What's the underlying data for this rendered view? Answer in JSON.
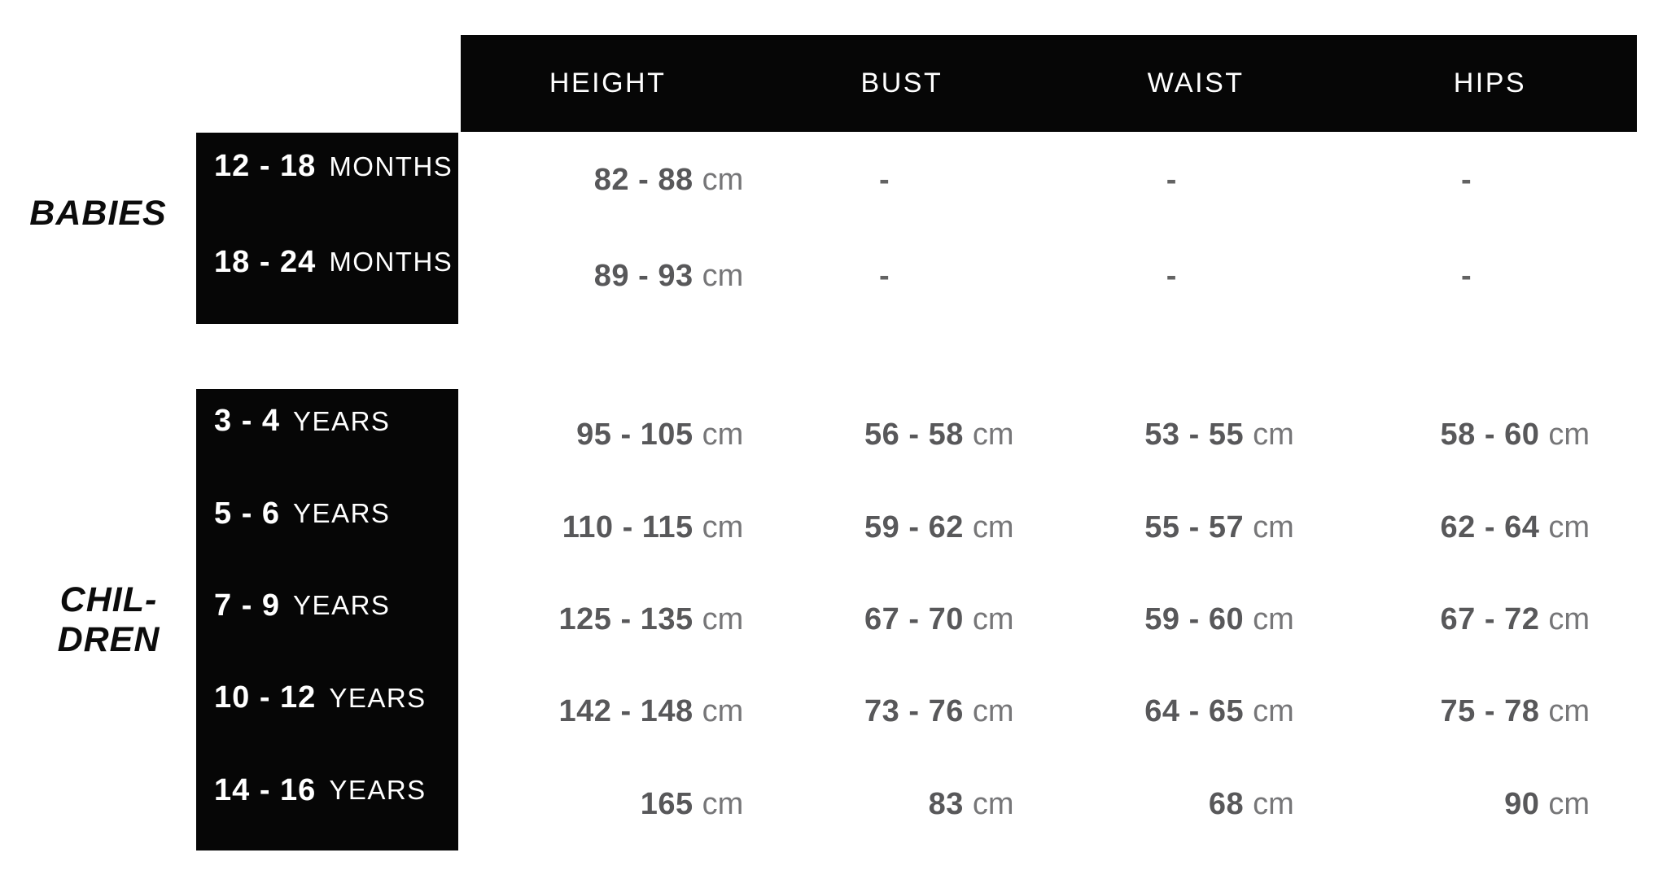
{
  "chart_data": {
    "type": "table",
    "columns": [
      "HEIGHT",
      "BUST",
      "WAIST",
      "HIPS"
    ],
    "groups": [
      {
        "label_lines": [
          "BABIES"
        ],
        "rows": [
          {
            "size": "12 - 18",
            "size_unit": "MONTHS",
            "cells": [
              {
                "num": "82 - 88",
                "unit": "cm"
              },
              {
                "dash": "-"
              },
              {
                "dash": "-"
              },
              {
                "dash": "-"
              }
            ]
          },
          {
            "size": "18 - 24",
            "size_unit": "MONTHS",
            "cells": [
              {
                "num": "89 - 93",
                "unit": "cm"
              },
              {
                "dash": "-"
              },
              {
                "dash": "-"
              },
              {
                "dash": "-"
              }
            ]
          }
        ]
      },
      {
        "label_lines": [
          "CHIL-",
          "DREN"
        ],
        "rows": [
          {
            "size": "3 - 4",
            "size_unit": "YEARS",
            "cells": [
              {
                "num": "95 - 105",
                "unit": "cm"
              },
              {
                "num": "56 - 58",
                "unit": "cm"
              },
              {
                "num": "53 - 55",
                "unit": "cm"
              },
              {
                "num": "58 - 60",
                "unit": "cm"
              }
            ]
          },
          {
            "size": "5 - 6",
            "size_unit": "YEARS",
            "cells": [
              {
                "num": "110 - 115",
                "unit": "cm"
              },
              {
                "num": "59 - 62",
                "unit": "cm"
              },
              {
                "num": "55 - 57",
                "unit": "cm"
              },
              {
                "num": "62 - 64",
                "unit": "cm"
              }
            ]
          },
          {
            "size": "7 - 9",
            "size_unit": "YEARS",
            "cells": [
              {
                "num": "125 - 135",
                "unit": "cm"
              },
              {
                "num": "67 - 70",
                "unit": "cm"
              },
              {
                "num": "59 - 60",
                "unit": "cm"
              },
              {
                "num": "67 - 72",
                "unit": "cm"
              }
            ]
          },
          {
            "size": "10 - 12",
            "size_unit": "YEARS",
            "cells": [
              {
                "num": "142 - 148",
                "unit": "cm"
              },
              {
                "num": "73 - 76",
                "unit": "cm"
              },
              {
                "num": "64 - 65",
                "unit": "cm"
              },
              {
                "num": "75 - 78",
                "unit": "cm"
              }
            ]
          },
          {
            "size": "14 - 16",
            "size_unit": "YEARS",
            "cells": [
              {
                "num": "165",
                "unit": "cm"
              },
              {
                "num": "83",
                "unit": "cm"
              },
              {
                "num": "68",
                "unit": "cm"
              },
              {
                "num": "90",
                "unit": "cm"
              }
            ]
          }
        ]
      }
    ],
    "colors": {
      "box_background": "#060606",
      "header_text": "#ffffff",
      "value_number": "#58585a",
      "value_unit": "#767678",
      "dash": "#636363",
      "group_label": "#0c0c0c"
    }
  }
}
